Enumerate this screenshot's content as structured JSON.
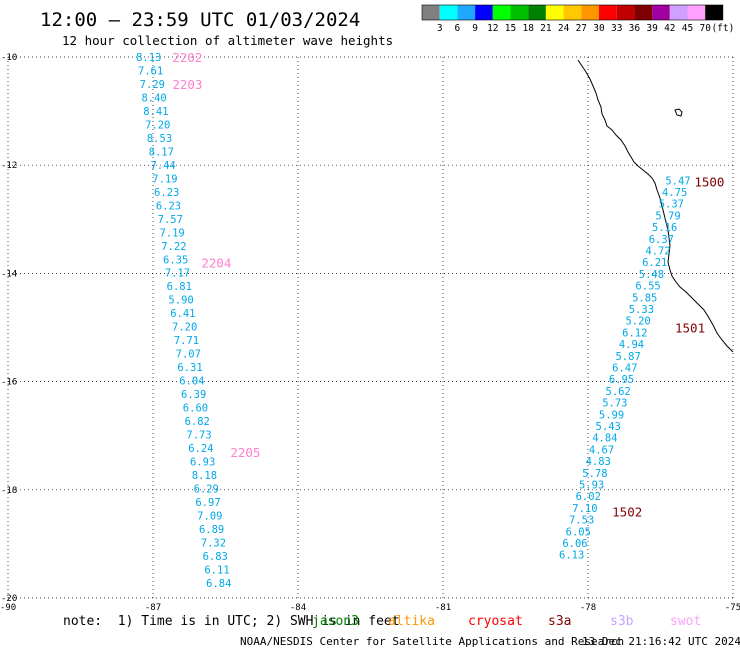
{
  "header": {
    "title": "12:00 – 23:59 UTC 01/03/2024",
    "subtitle": "12 hour collection of altimeter wave heights"
  },
  "colorbar": {
    "labels": [
      "3",
      "6",
      "9",
      "12",
      "15",
      "18",
      "21",
      "24",
      "27",
      "30",
      "33",
      "36",
      "39",
      "42",
      "45",
      "70",
      "(ft)"
    ],
    "colors": [
      "#808080",
      "#00ffff",
      "#1ea8ff",
      "#0000ff",
      "#00ff00",
      "#00c000",
      "#008000",
      "#ffff00",
      "#ffc800",
      "#ff9600",
      "#ff0000",
      "#c00000",
      "#800000",
      "#a000a0",
      "#d0a0ff",
      "#ffa0ff",
      "#000000"
    ]
  },
  "map": {
    "lat_labels": [
      "-10",
      "-12",
      "-14",
      "-16",
      "-18",
      "-20"
    ],
    "lon_labels": [
      "-90",
      "-87",
      "-84",
      "-81",
      "-78",
      "-75"
    ],
    "lat_range": [
      -20,
      -10
    ],
    "lon_range": [
      -90,
      -75
    ],
    "value_color": "#00a8e8",
    "pass_label_colors": {
      "pink": "#ff80d0",
      "darkred": "#800000"
    }
  },
  "passes": [
    {
      "label": "2202",
      "label_color": "pink",
      "label_lat": -10.0,
      "label_lon": -86.6
    },
    {
      "label": "2203",
      "label_color": "pink",
      "label_lat": -10.5,
      "label_lon": -86.6
    },
    {
      "label": "2204",
      "label_color": "pink",
      "label_lat": -13.8,
      "label_lon": -86.0
    },
    {
      "label": "2205",
      "label_color": "pink",
      "label_lat": -17.3,
      "label_lon": -85.4
    },
    {
      "label": "1500",
      "label_color": "darkred",
      "label_lat": -12.3,
      "label_lon": -75.8
    },
    {
      "label": "1501",
      "label_color": "darkred",
      "label_lat": -15.0,
      "label_lon": -76.2
    },
    {
      "label": "1502",
      "label_color": "darkred",
      "label_lat": -18.4,
      "label_lon": -77.5
    }
  ],
  "track_west": {
    "start_lat": -10.0,
    "end_lat": -19.72,
    "start_lon": -87.35,
    "end_lon": -85.9,
    "values": [
      "8.13",
      "7.61",
      "7.29",
      "8.40",
      "8.41",
      "7.20",
      "8.53",
      "8.17",
      "7.44",
      "7.19",
      "6.23",
      "6.23",
      "7.57",
      "7.19",
      "7.22",
      "6.35",
      "7.17",
      "6.81",
      "5.90",
      "6.41",
      "7.20",
      "7.71",
      "7.07",
      "6.31",
      "6.04",
      "6.39",
      "6.60",
      "6.82",
      "7.73",
      "6.24",
      "6.93",
      "8.18",
      "6.29",
      "6.97",
      "7.09",
      "6.89",
      "7.32",
      "6.83",
      "6.11",
      "6.84"
    ]
  },
  "track_east": {
    "start_lat": -12.28,
    "end_lat": -19.2,
    "start_lon": -76.4,
    "end_lon": -78.6,
    "values": [
      "5.47",
      "4.75",
      "5.37",
      "5.79",
      "5.16",
      "6.37",
      "4.72",
      "6.21",
      "5.48",
      "6.55",
      "5.85",
      "5.33",
      "5.20",
      "6.12",
      "4.94",
      "5.87",
      "6.47",
      "6.95",
      "5.62",
      "5.73",
      "5.99",
      "5.43",
      "4.84",
      "4.67",
      "4.83",
      "5.78",
      "5.93",
      "6.02",
      "7.10",
      "7.53",
      "6.05",
      "6.06",
      "6.13"
    ]
  },
  "footer": {
    "note": "note:  1) Time is in UTC; 2) SWH is in feet",
    "satellites": [
      {
        "name": "jason3",
        "color": "#008000"
      },
      {
        "name": "altika",
        "color": "#ff9600"
      },
      {
        "name": "cryosat",
        "color": "#ff0000"
      },
      {
        "name": "s3a",
        "color": "#800000"
      },
      {
        "name": "s3b",
        "color": "#c8a0ff"
      },
      {
        "name": "swot",
        "color": "#ffa0ff"
      }
    ],
    "credit": "NOAA/NESDIS Center for Satellite Applications and Research",
    "timestamp": "13 Dec 21:16:42 UTC 2024"
  }
}
